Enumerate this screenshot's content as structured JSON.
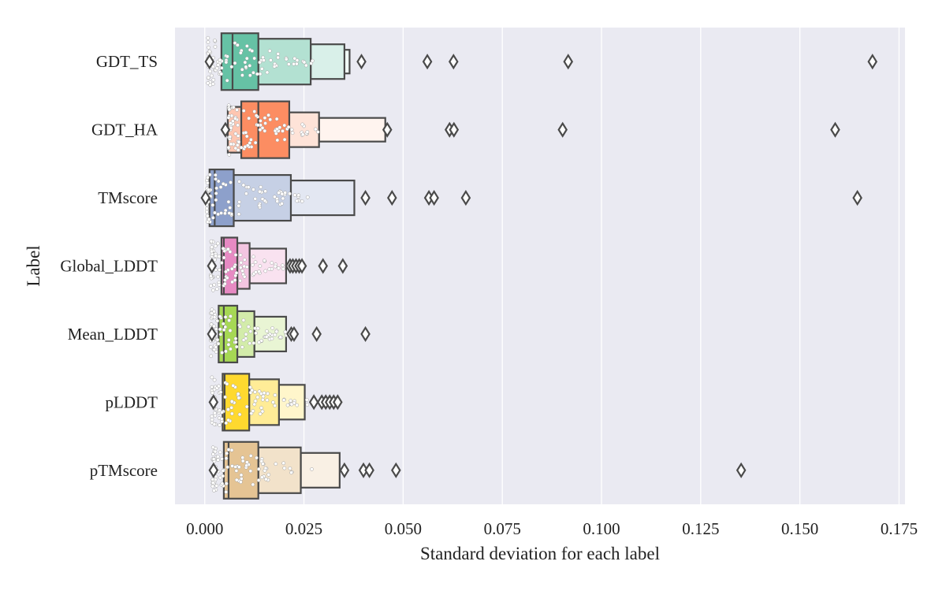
{
  "chart_data": {
    "type": "boxen",
    "orientation": "horizontal",
    "xlabel": "Standard deviation for each label",
    "ylabel": "Label",
    "xlim": [
      -0.0075,
      0.1765
    ],
    "xticks": [
      0.0,
      0.025,
      0.05,
      0.075,
      0.1,
      0.125,
      0.15,
      0.175
    ],
    "xtick_labels": [
      "0.000",
      "0.025",
      "0.050",
      "0.075",
      "0.100",
      "0.125",
      "0.150",
      "0.175"
    ],
    "grid": true,
    "background": "#eaeaf2",
    "categories": [
      "GDT_TS",
      "GDT_HA",
      "TMscore",
      "Global_LDDT",
      "Mean_LDDT",
      "pLDDT",
      "pTMscore"
    ],
    "series": [
      {
        "category": "GDT_TS",
        "color": "#66c2a5",
        "median": 0.007,
        "boxes": [
          [
            0.0042,
            0.0135
          ],
          [
            0.0135,
            0.0267
          ],
          [
            0.0267,
            0.0352
          ],
          [
            0.0352,
            0.0365
          ]
        ],
        "whisker_min": 0.0012,
        "outliers": [
          0.0395,
          0.0561,
          0.0627,
          0.0916,
          0.1683
        ],
        "swarm_range": [
          0.0008,
          0.028
        ]
      },
      {
        "category": "GDT_HA",
        "color": "#fc8d62",
        "median": 0.0135,
        "boxes": [
          [
            0.0092,
            0.0213
          ],
          [
            0.0058,
            0.0092
          ],
          [
            0.0213,
            0.0288
          ],
          [
            0.0288,
            0.0455
          ]
        ],
        "whisker_min": 0.0052,
        "outliers": [
          0.046,
          0.0617,
          0.0628,
          0.0902,
          0.1589
        ],
        "swarm_range": [
          0.006,
          0.03
        ]
      },
      {
        "category": "TMscore",
        "color": "#8da0cb",
        "median": 0.0025,
        "boxes": [
          [
            0.0012,
            0.0073
          ],
          [
            0.0073,
            0.0217
          ],
          [
            0.0217,
            0.0377
          ]
        ],
        "whisker_min": 0.0002,
        "outliers": [
          0.0405,
          0.0472,
          0.0565,
          0.0578,
          0.0658,
          0.1645
        ],
        "swarm_range": [
          0.0005,
          0.026
        ]
      },
      {
        "category": "Global_LDDT",
        "color": "#e78ac3",
        "median": 0.0048,
        "boxes": [
          [
            0.0042,
            0.0082
          ],
          [
            0.0082,
            0.0113
          ],
          [
            0.0113,
            0.0205
          ]
        ],
        "whisker_min": 0.0018,
        "outliers": [
          0.0215,
          0.0222,
          0.023,
          0.0238,
          0.0245,
          0.0298,
          0.0348
        ],
        "swarm_range": [
          0.0015,
          0.02
        ]
      },
      {
        "category": "Mean_LDDT",
        "color": "#a6d854",
        "median": 0.0048,
        "boxes": [
          [
            0.0035,
            0.0082
          ],
          [
            0.0082,
            0.0125
          ],
          [
            0.0125,
            0.0205
          ]
        ],
        "whisker_min": 0.0018,
        "outliers": [
          0.0218,
          0.0225,
          0.0282,
          0.0405
        ],
        "swarm_range": [
          0.0015,
          0.022
        ]
      },
      {
        "category": "pLDDT",
        "color": "#ffd92f",
        "median": 0.005,
        "boxes": [
          [
            0.0045,
            0.0112
          ],
          [
            0.0112,
            0.0187
          ],
          [
            0.0187,
            0.0252
          ]
        ],
        "whisker_min": 0.0022,
        "outliers": [
          0.0275,
          0.0295,
          0.0305,
          0.0315,
          0.0325,
          0.0335
        ],
        "swarm_range": [
          0.0018,
          0.026
        ]
      },
      {
        "category": "pTMscore",
        "color": "#e5c494",
        "median": 0.006,
        "boxes": [
          [
            0.0048,
            0.0135
          ],
          [
            0.0135,
            0.0242
          ],
          [
            0.0242,
            0.034
          ]
        ],
        "whisker_min": 0.0022,
        "outliers": [
          0.0352,
          0.04,
          0.0415,
          0.0482,
          0.1352
        ],
        "swarm_range": [
          0.002,
          0.027
        ]
      }
    ]
  }
}
